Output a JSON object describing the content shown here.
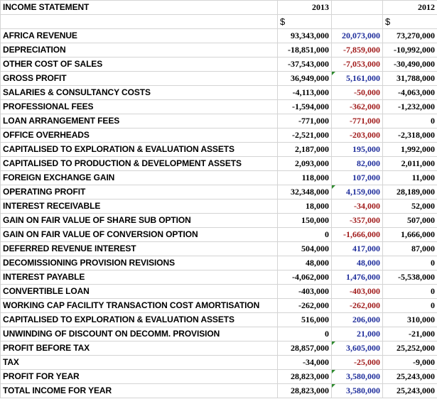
{
  "header": {
    "title": "INCOME STATEMENT",
    "year_a": "2013",
    "year_b": "2012",
    "currency_a": "$",
    "currency_b": "$"
  },
  "rows": [
    {
      "label": "AFRICA REVENUE",
      "v2013": "93,343,000",
      "change": "20,073,000",
      "v2012": "73,270,000",
      "neg": false,
      "flag": false
    },
    {
      "label": "DEPRECIATION",
      "v2013": "-18,851,000",
      "change": "-7,859,000",
      "v2012": "-10,992,000",
      "neg": true,
      "flag": false
    },
    {
      "label": "OTHER COST OF SALES",
      "v2013": "-37,543,000",
      "change": "-7,053,000",
      "v2012": "-30,490,000",
      "neg": true,
      "flag": false
    },
    {
      "label": "GROSS PROFIT",
      "v2013": "36,949,000",
      "change": "5,161,000",
      "v2012": "31,788,000",
      "neg": false,
      "flag": true
    },
    {
      "label": "SALARIES & CONSULTANCY COSTS",
      "v2013": "-4,113,000",
      "change": "-50,000",
      "v2012": "-4,063,000",
      "neg": true,
      "flag": false
    },
    {
      "label": "PROFESSIONAL FEES",
      "v2013": "-1,594,000",
      "change": "-362,000",
      "v2012": "-1,232,000",
      "neg": true,
      "flag": false
    },
    {
      "label": "LOAN ARRANGEMENT FEES",
      "v2013": "-771,000",
      "change": "-771,000",
      "v2012": "0",
      "neg": true,
      "flag": false
    },
    {
      "label": "OFFICE OVERHEADS",
      "v2013": "-2,521,000",
      "change": "-203,000",
      "v2012": "-2,318,000",
      "neg": true,
      "flag": false
    },
    {
      "label": "CAPITALISED TO EXPLORATION & EVALUATION ASSETS",
      "v2013": "2,187,000",
      "change": "195,000",
      "v2012": "1,992,000",
      "neg": false,
      "flag": false
    },
    {
      "label": "CAPITALISED TO PRODUCTION & DEVELOPMENT ASSETS",
      "v2013": "2,093,000",
      "change": "82,000",
      "v2012": "2,011,000",
      "neg": false,
      "flag": false
    },
    {
      "label": "FOREIGN EXCHANGE GAIN",
      "v2013": "118,000",
      "change": "107,000",
      "v2012": "11,000",
      "neg": false,
      "flag": false
    },
    {
      "label": "OPERATING PROFIT",
      "v2013": "32,348,000",
      "change": "4,159,000",
      "v2012": "28,189,000",
      "neg": false,
      "flag": true
    },
    {
      "label": "INTEREST RECEIVABLE",
      "v2013": "18,000",
      "change": "-34,000",
      "v2012": "52,000",
      "neg": true,
      "flag": false
    },
    {
      "label": "GAIN ON FAIR VALUE OF SHARE SUB OPTION",
      "v2013": "150,000",
      "change": "-357,000",
      "v2012": "507,000",
      "neg": true,
      "flag": false
    },
    {
      "label": "GAIN ON FAIR VALUE OF CONVERSION OPTION",
      "v2013": "0",
      "change": "-1,666,000",
      "v2012": "1,666,000",
      "neg": true,
      "flag": false
    },
    {
      "label": "DEFERRED REVENUE INTEREST",
      "v2013": "504,000",
      "change": "417,000",
      "v2012": "87,000",
      "neg": false,
      "flag": false
    },
    {
      "label": "DECOMISSIONING PROVISION REVISIONS",
      "v2013": "48,000",
      "change": "48,000",
      "v2012": "0",
      "neg": false,
      "flag": false
    },
    {
      "label": "INTEREST PAYABLE",
      "v2013": "-4,062,000",
      "change": "1,476,000",
      "v2012": "-5,538,000",
      "neg": false,
      "flag": false
    },
    {
      "label": "CONVERTIBLE LOAN",
      "v2013": "-403,000",
      "change": "-403,000",
      "v2012": "0",
      "neg": true,
      "flag": false
    },
    {
      "label": "WORKING CAP FACILITY TRANSACTION COST AMORTISATION",
      "v2013": "-262,000",
      "change": "-262,000",
      "v2012": "0",
      "neg": true,
      "flag": false
    },
    {
      "label": "CAPITALISED TO EXPLORATION & EVALUATION ASSETS",
      "v2013": "516,000",
      "change": "206,000",
      "v2012": "310,000",
      "neg": false,
      "flag": false
    },
    {
      "label": "UNWINDING OF DISCOUNT ON DECOMM. PROVISION",
      "v2013": "0",
      "change": "21,000",
      "v2012": "-21,000",
      "neg": false,
      "flag": false
    },
    {
      "label": "PROFIT BEFORE TAX",
      "v2013": "28,857,000",
      "change": "3,605,000",
      "v2012": "25,252,000",
      "neg": false,
      "flag": true
    },
    {
      "label": "TAX",
      "v2013": "-34,000",
      "change": "-25,000",
      "v2012": "-9,000",
      "neg": true,
      "flag": false
    },
    {
      "label": "PROFIT FOR YEAR",
      "v2013": "28,823,000",
      "change": "3,580,000",
      "v2012": "25,243,000",
      "neg": false,
      "flag": true
    },
    {
      "label": "TOTAL INCOME FOR YEAR",
      "v2013": "28,823,000",
      "change": "3,580,000",
      "v2012": "25,243,000",
      "neg": false,
      "flag": true
    }
  ],
  "colors": {
    "positive_change": "#1f2e9c",
    "negative_change": "#a11b1b",
    "flag": "#2e8b2e",
    "gridline": "#d4d4d4"
  }
}
